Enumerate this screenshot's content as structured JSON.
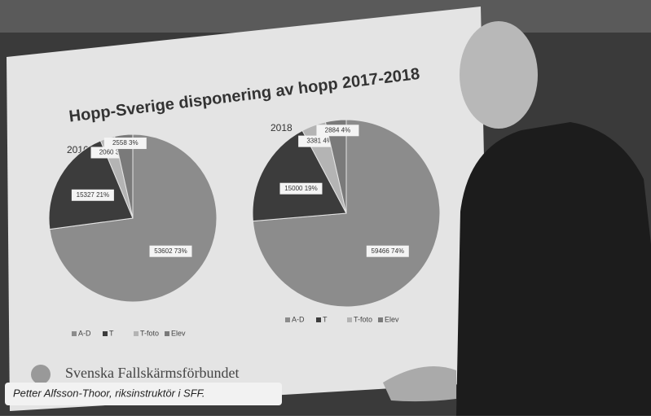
{
  "slide": {
    "title": "Hopp-Sverige disponering av hopp 2017-2018",
    "footer": "Svenska Fallskärmsförbundet"
  },
  "caption": "Petter Alfsson-Thoor, riksinstruktör i SFF.",
  "chart_data": [
    {
      "type": "pie",
      "title": "2016",
      "categories": [
        "A-D",
        "T",
        "T-foto",
        "Elev"
      ],
      "values": [
        53602,
        15327,
        2060,
        2558
      ],
      "value_labels": [
        "53602 73%",
        "15327 21%",
        "2060 3%",
        "2558 3%"
      ],
      "colors": [
        "#8c8c8c",
        "#3c3c3c",
        "#b4b4b4",
        "#7a7a7a"
      ]
    },
    {
      "type": "pie",
      "title": "2018",
      "categories": [
        "A-D",
        "T",
        "T-foto",
        "Elev"
      ],
      "values": [
        59466,
        15000,
        3381,
        2884
      ],
      "value_labels": [
        "59466 74%",
        "15000 19%",
        "3381 4%",
        "2884 4%"
      ],
      "colors": [
        "#8c8c8c",
        "#3c3c3c",
        "#b4b4b4",
        "#7a7a7a"
      ]
    }
  ]
}
